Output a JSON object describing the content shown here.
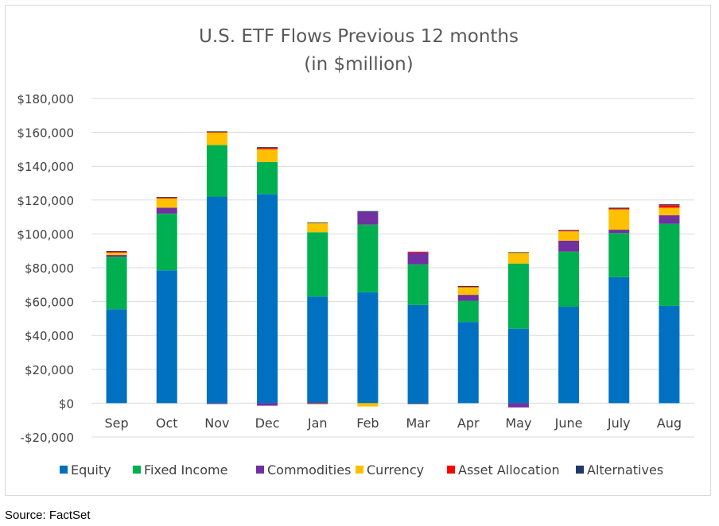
{
  "chart_data": {
    "type": "bar",
    "stacked": true,
    "title": "U.S. ETF Flows Previous 12 months",
    "subtitle": "(in $million)",
    "xlabel": "",
    "ylabel": "",
    "ylim": [
      -20000,
      180000
    ],
    "yticks": [
      -20000,
      0,
      20000,
      40000,
      60000,
      80000,
      100000,
      120000,
      140000,
      160000,
      180000
    ],
    "ytick_labels": [
      "-$20,000",
      "$0",
      "$20,000",
      "$40,000",
      "$60,000",
      "$80,000",
      "$100,000",
      "$120,000",
      "$140,000",
      "$160,000",
      "$180,000"
    ],
    "grid": true,
    "legend_position": "bottom",
    "categories": [
      "Sep",
      "Oct",
      "Nov",
      "Dec",
      "Jan",
      "Feb",
      "Mar",
      "Apr",
      "May",
      "June",
      "July",
      "Aug"
    ],
    "series": [
      {
        "name": "Equity",
        "color": "#0070c0",
        "values": [
          55500,
          78500,
          122000,
          123500,
          63000,
          65500,
          58000,
          48000,
          44000,
          57000,
          74500,
          57500
        ]
      },
      {
        "name": "Fixed Income",
        "color": "#00b050",
        "values": [
          31000,
          33500,
          30500,
          19000,
          38000,
          40000,
          24000,
          12500,
          38500,
          32500,
          26000,
          48500
        ]
      },
      {
        "name": "Commodities",
        "color": "#7030a0",
        "values": [
          1000,
          3500,
          -500,
          -1500,
          0,
          7500,
          7000,
          3500,
          -2500,
          6500,
          2000,
          5000
        ]
      },
      {
        "name": "Currency",
        "color": "#ffc000",
        "values": [
          1500,
          5500,
          7500,
          7500,
          5500,
          -2000,
          0,
          4500,
          6500,
          5500,
          12000,
          4500
        ]
      },
      {
        "name": "Asset Allocation",
        "color": "#ff0000",
        "values": [
          600,
          500,
          300,
          800,
          -500,
          0,
          500,
          500,
          0,
          500,
          500,
          1500
        ]
      },
      {
        "name": "Alternatives",
        "color": "#203864",
        "values": [
          300,
          300,
          300,
          500,
          300,
          500,
          -500,
          200,
          200,
          300,
          500,
          500
        ]
      }
    ]
  },
  "source": "Source: FactSet"
}
